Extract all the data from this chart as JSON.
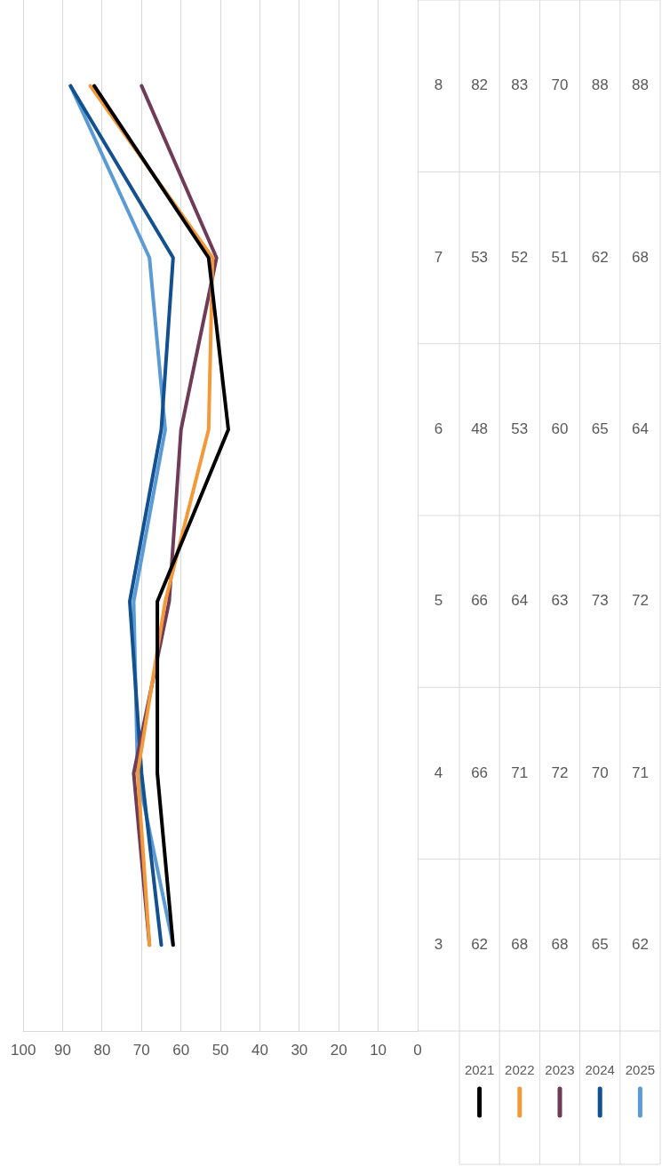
{
  "chart_data": {
    "type": "line",
    "orientation": "horizontal",
    "categories": [
      "8",
      "7",
      "6",
      "5",
      "4",
      "3"
    ],
    "series": [
      {
        "name": "2021",
        "color": "#000000",
        "values": [
          82,
          53,
          48,
          66,
          66,
          62
        ]
      },
      {
        "name": "2022",
        "color": "#f4993a",
        "values": [
          83,
          52,
          53,
          64,
          71,
          68
        ]
      },
      {
        "name": "2023",
        "color": "#6f3b57",
        "values": [
          70,
          51,
          60,
          63,
          72,
          68
        ]
      },
      {
        "name": "2024",
        "color": "#12508f",
        "values": [
          88,
          62,
          65,
          73,
          70,
          65
        ]
      },
      {
        "name": "2025",
        "color": "#5b9bd5",
        "values": [
          88,
          68,
          64,
          72,
          71,
          62
        ]
      }
    ],
    "xlim": [
      100,
      0
    ],
    "xticks": [
      100,
      90,
      80,
      70,
      60,
      50,
      40,
      30,
      20,
      10,
      0
    ],
    "grid": "x",
    "legend": "bottom",
    "data_labels": true
  }
}
